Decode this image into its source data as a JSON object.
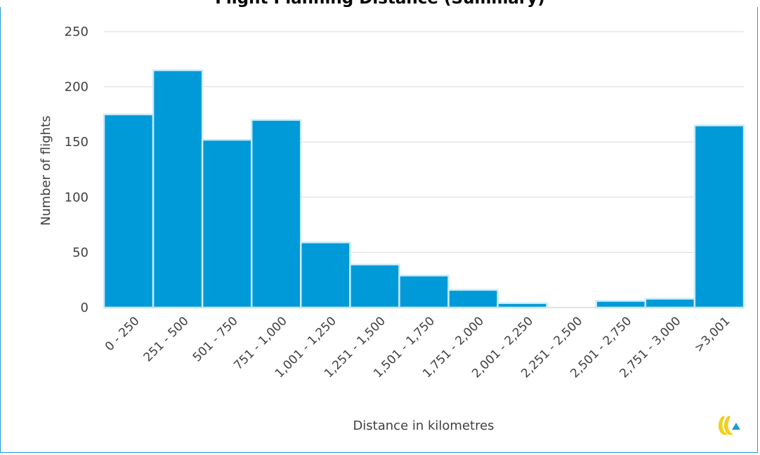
{
  "chart_data": {
    "type": "bar",
    "title": "Flight Planning Distance (Summary)",
    "xlabel": "Distance in kilometres",
    "ylabel": "Number of flights",
    "categories": [
      "0 - 250",
      "251 - 500",
      "501 - 750",
      "751 - 1,000",
      "1,001 - 1,250",
      "1,251 - 1,500",
      "1,501 - 1,750",
      "1,751 - 2,000",
      "2,001 - 2,250",
      "2,251 - 2,500",
      "2,501 - 2,750",
      "2,751 - 3,000",
      ">3,001"
    ],
    "values": [
      175,
      215,
      152,
      170,
      59,
      39,
      29,
      16,
      4,
      0,
      6,
      8,
      165
    ],
    "ylim": [
      0,
      250
    ],
    "yticks": [
      0,
      50,
      100,
      150,
      200,
      250
    ],
    "grid": true,
    "bar_color": "#009ad8",
    "bar_edge_color": "#c9ecf8",
    "grid_color": "#d9d9d9"
  },
  "logo": {
    "name": "eurocontrol-logo-icon"
  }
}
